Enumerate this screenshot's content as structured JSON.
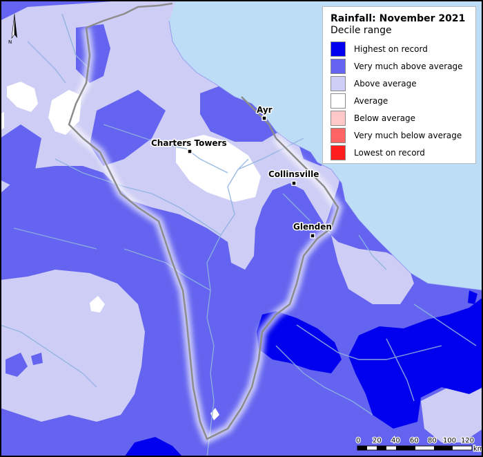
{
  "legend": {
    "title": "Rainfall: November 2021",
    "subtitle": "Decile range",
    "items": [
      {
        "label": "Highest on record",
        "color": "#0000ee"
      },
      {
        "label": "Very much above average",
        "color": "#6464f0"
      },
      {
        "label": "Above average",
        "color": "#cdcdf5"
      },
      {
        "label": "Average",
        "color": "#ffffff"
      },
      {
        "label": "Below average",
        "color": "#ffc8c8"
      },
      {
        "label": "Very much below average",
        "color": "#ff6464"
      },
      {
        "label": "Lowest on record",
        "color": "#ff1e1e"
      }
    ]
  },
  "towns": [
    {
      "name": "Ayr"
    },
    {
      "name": "Charters Towers"
    },
    {
      "name": "Collinsville"
    },
    {
      "name": "Glenden"
    }
  ],
  "north_arrow": {
    "label": "N"
  },
  "scale_bar": {
    "ticks": [
      "0",
      "20",
      "40",
      "60",
      "80",
      "100",
      "120"
    ],
    "unit": "km"
  },
  "colors": {
    "sea": "#bddcf5",
    "river": "#8fb2e0",
    "boundary": "#8c8c8c"
  }
}
